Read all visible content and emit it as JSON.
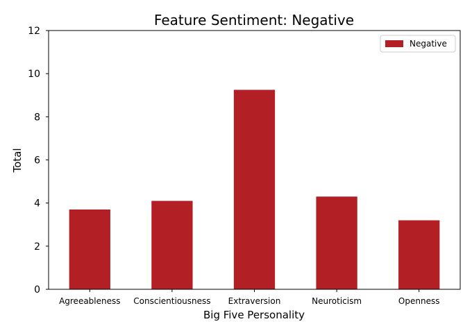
{
  "chart_data": {
    "type": "bar",
    "title": "Feature Sentiment: Negative",
    "xlabel": "Big Five Personality",
    "ylabel": "Total",
    "categories": [
      "Agreeableness",
      "Conscientiousness",
      "Extraversion",
      "Neuroticism",
      "Openness"
    ],
    "series": [
      {
        "name": "Negative",
        "values": [
          3.7,
          4.1,
          9.25,
          4.3,
          3.2
        ],
        "color": "#b22025"
      }
    ],
    "ylim": [
      0,
      12
    ],
    "yticks": [
      "0",
      "2",
      "4",
      "6",
      "8",
      "10",
      "12"
    ],
    "grid": false,
    "legend_position": "top-right"
  }
}
